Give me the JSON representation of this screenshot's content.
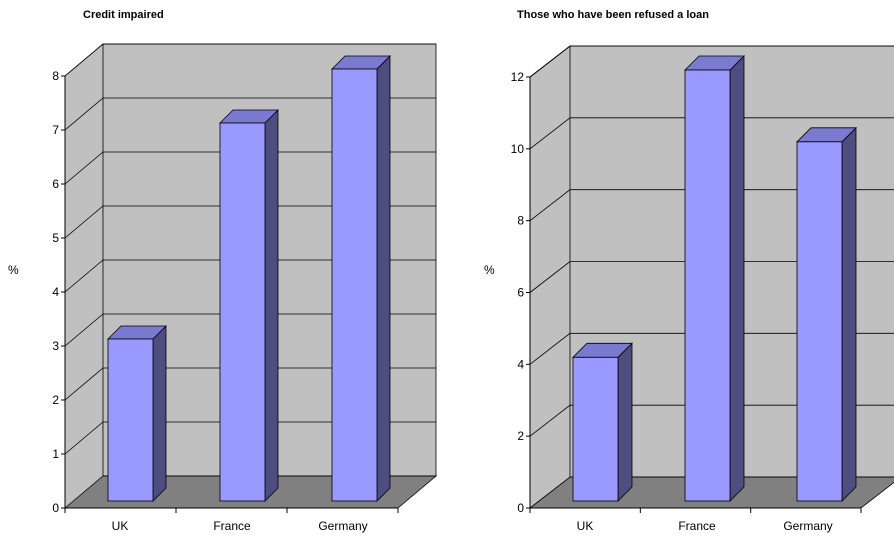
{
  "colors": {
    "wall": "#c0c0c0",
    "floor": "#808080",
    "bar_front": "#9999ff",
    "bar_side": "#4d4d80",
    "bar_top": "#7a7ad0",
    "gridline": "#000000"
  },
  "chart_data": [
    {
      "type": "bar",
      "title": "Credit impaired",
      "ylabel": "%",
      "xlabel": "",
      "categories": [
        "UK",
        "France",
        "Germany"
      ],
      "values": [
        3,
        7,
        8
      ],
      "ylim": [
        0,
        8
      ],
      "yticks": [
        0,
        1,
        2,
        3,
        4,
        5,
        6,
        7,
        8
      ],
      "grid": true,
      "style": "3d-column"
    },
    {
      "type": "bar",
      "title": "Those who have been refused a loan",
      "ylabel": "%",
      "xlabel": "",
      "categories": [
        "UK",
        "France",
        "Germany"
      ],
      "values": [
        4,
        12,
        10
      ],
      "ylim": [
        0,
        12
      ],
      "yticks": [
        0,
        2,
        4,
        6,
        8,
        10,
        12
      ],
      "grid": true,
      "style": "3d-column"
    }
  ]
}
